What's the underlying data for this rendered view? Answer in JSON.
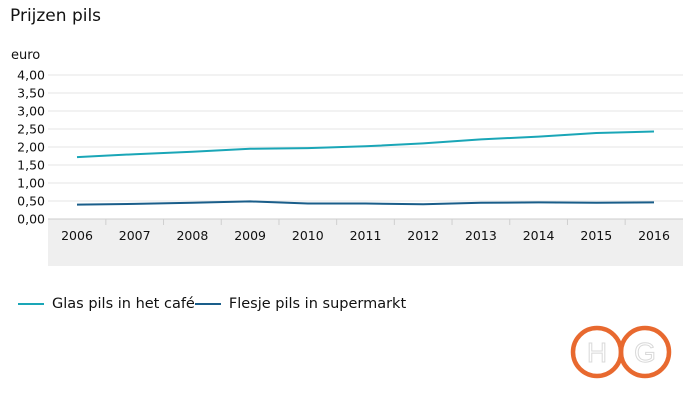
{
  "chart_data": {
    "type": "line",
    "title": "Prijzen pils",
    "ylabel": "euro",
    "xlabel": "",
    "x": [
      "2006",
      "2007",
      "2008",
      "2009",
      "2010",
      "2011",
      "2012",
      "2013",
      "2014",
      "2015",
      "2016"
    ],
    "ylim": [
      0,
      4
    ],
    "yticks": [
      "0,00",
      "0,50",
      "1,00",
      "1,50",
      "2,00",
      "2,50",
      "3,00",
      "3,50",
      "4,00"
    ],
    "grid": true,
    "legend_position": "bottom",
    "series": [
      {
        "name": "Glas pils in het café",
        "color": "#1aa6b7",
        "values": [
          1.72,
          1.8,
          1.87,
          1.95,
          1.97,
          2.02,
          2.1,
          2.21,
          2.29,
          2.39,
          2.43
        ]
      },
      {
        "name": "Flesje pils in supermarkt",
        "color": "#1a5e8a",
        "values": [
          0.4,
          0.42,
          0.45,
          0.49,
          0.43,
          0.43,
          0.41,
          0.45,
          0.46,
          0.45,
          0.46
        ]
      }
    ]
  },
  "logo": {
    "letters": [
      "H",
      "G"
    ],
    "color": "#e8692f"
  }
}
